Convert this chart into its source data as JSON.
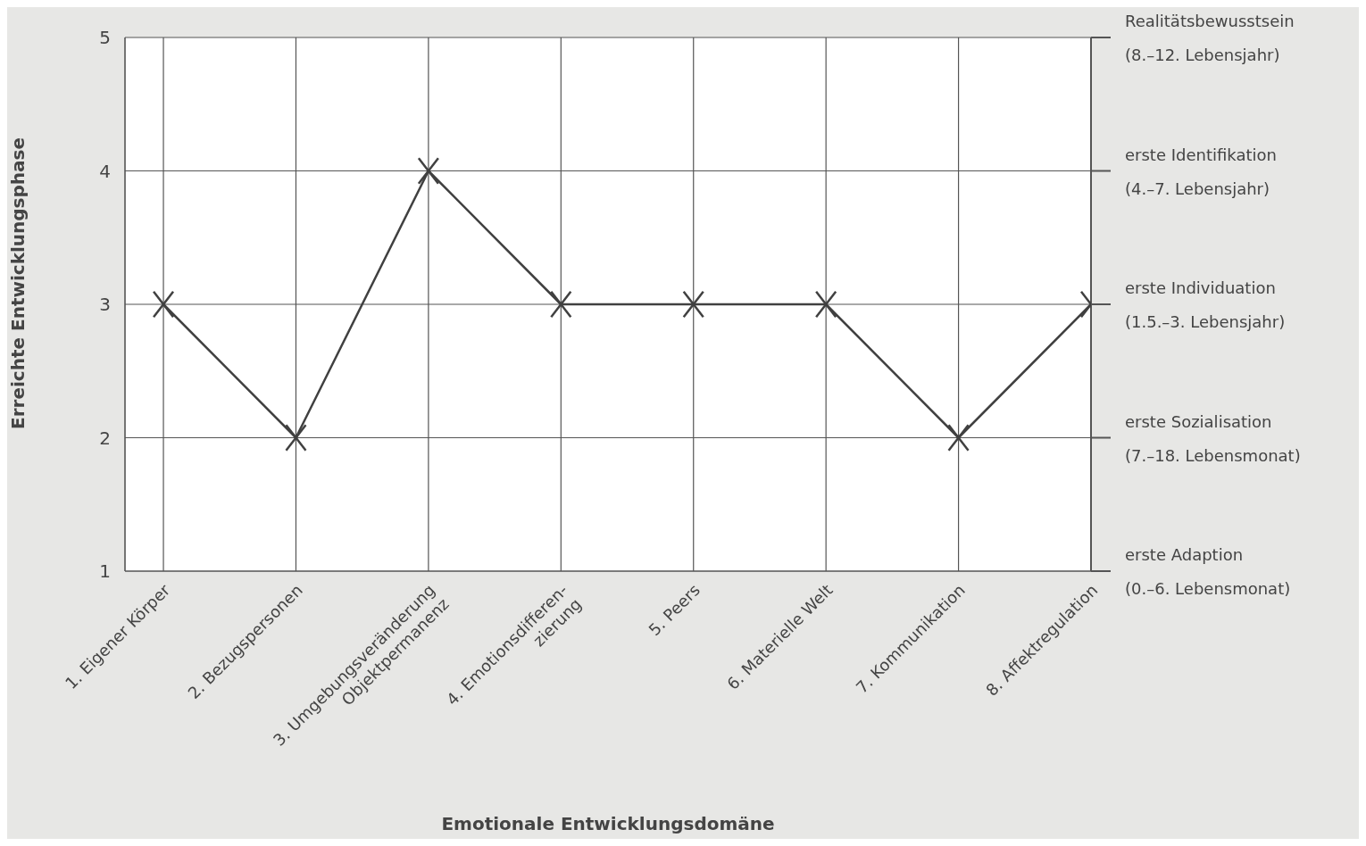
{
  "chart_data": {
    "type": "line",
    "xlabel": "Emotionale Entwicklungsdomäne",
    "ylabel": "Erreichte Entwicklungsphase",
    "categories": [
      "1. Eigener Körper",
      "2. Bezugspersonen",
      "3. Umgebungsveränderung\nObjektpermanenz",
      "4. Emotionsdifferen-\nzierung",
      "5. Peers",
      "6. Materielle Welt",
      "7. Kommunikation",
      "8. Affektregulation"
    ],
    "series": [
      {
        "color": "#404040",
        "values": [
          3,
          2,
          4,
          3,
          3,
          3,
          2,
          3
        ]
      }
    ],
    "ylim": [
      1,
      5
    ],
    "yticks": [
      1,
      2,
      3,
      4,
      5
    ],
    "annotations": [
      "erste Adaption\n(0.–6. Lebensmonat)",
      "erste Sozialisation\n(7.–18. Lebensmonat)",
      "erste Individuation\n(1.5.–3. Lebensjahr)",
      "erste Identifikation\n(4.–7. Lebensjahr)",
      "Realitätsbewusstsein\n(8.–12. Lebensjahr)"
    ],
    "grid": true,
    "marker": "cross",
    "line_style": "solid"
  }
}
